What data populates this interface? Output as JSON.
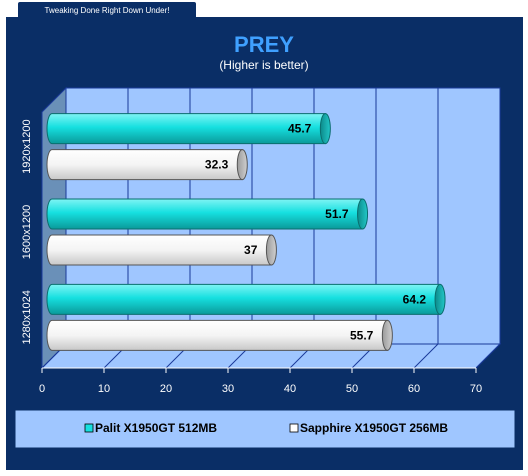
{
  "banner": {
    "text": "Tweaking Done Right Down Under!"
  },
  "chart_data": {
    "type": "bar",
    "orientation": "horizontal",
    "title": "PREY",
    "subtitle": "(Higher is better)",
    "categories": [
      "1920x1200",
      "1600x1200",
      "1280x1024"
    ],
    "series": [
      {
        "name": "Palit X1950GT 512MB",
        "values": [
          45.7,
          51.7,
          64.2
        ],
        "color": "#16e0e0"
      },
      {
        "name": "Sapphire X1950GT 256MB",
        "values": [
          32.3,
          37,
          55.7
        ],
        "color": "#ffffff"
      }
    ],
    "value_labels": [
      [
        "45.7",
        "51.7",
        "64.2"
      ],
      [
        "32.3",
        "37",
        "55.7"
      ]
    ],
    "xlim": [
      0,
      70
    ],
    "xticks": [
      "0",
      "10",
      "20",
      "30",
      "40",
      "50",
      "60",
      "70"
    ],
    "grid": true,
    "legend_position": "bottom"
  },
  "colors": {
    "background": "#0a2e66",
    "plot_wall": "#9fc6ff",
    "plot_side": "#6a90b8",
    "gridline": "#1a3a9a",
    "legend_bg": "#9fc6ff"
  }
}
